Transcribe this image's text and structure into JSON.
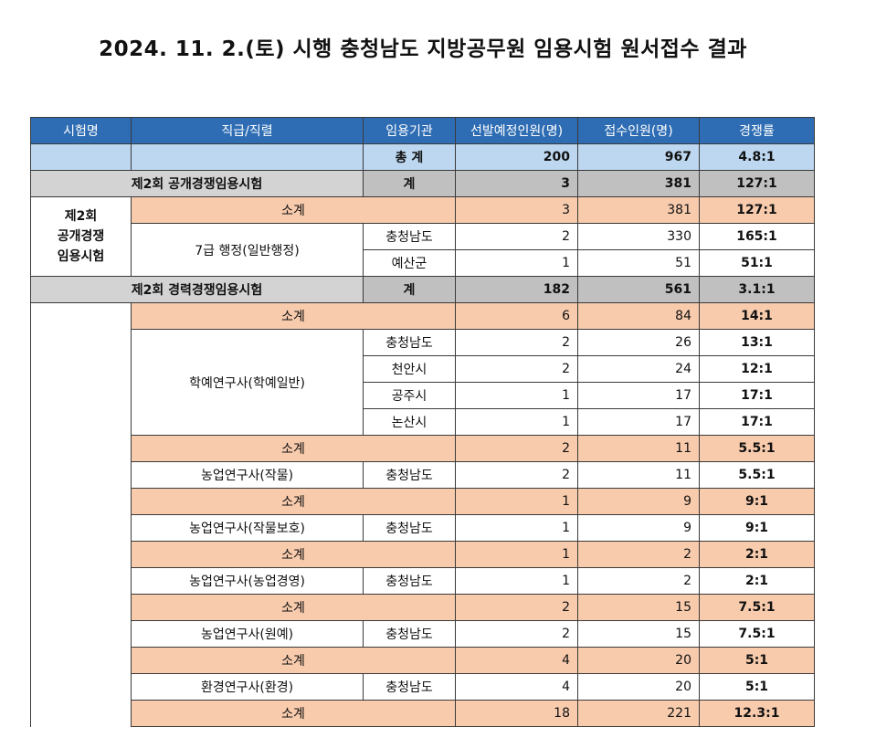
{
  "title": "2024. 11. 2.(토) 시행 충청남도 지방공무원 임용시험 원서접수 결과",
  "headers": [
    "시험명",
    "직급/직렬",
    "임용기관",
    "선발예정인원(명)",
    "접수인원(명)",
    "경쟁률"
  ],
  "total": {
    "label": "총 계",
    "planned": "200",
    "applied": "967",
    "ratio": "4.8:1"
  },
  "open_exam": {
    "name": "제2회 공개경쟁임용시험",
    "sum_label": "계",
    "planned": "3",
    "applied": "381",
    "ratio": "127:1",
    "side_label": "제2회\n공개경쟁\n임용시험",
    "subtotal": {
      "label": "소계",
      "planned": "3",
      "applied": "381",
      "ratio": "127:1"
    },
    "position": "7급 행정(일반행정)",
    "rows": [
      {
        "agency": "충청남도",
        "planned": "2",
        "applied": "330",
        "ratio": "165:1"
      },
      {
        "agency": "예산군",
        "planned": "1",
        "applied": "51",
        "ratio": "51:1"
      }
    ]
  },
  "career_exam": {
    "name": "제2회 경력경쟁임용시험",
    "sum_label": "계",
    "planned": "182",
    "applied": "561",
    "ratio": "3.1:1",
    "research_subtotal": {
      "label": "소계",
      "planned": "6",
      "applied": "84",
      "ratio": "14:1"
    },
    "research_position": "학예연구사(학예일반)",
    "research_rows": [
      {
        "agency": "충청남도",
        "planned": "2",
        "applied": "26",
        "ratio": "13:1"
      },
      {
        "agency": "천안시",
        "planned": "2",
        "applied": "24",
        "ratio": "12:1"
      },
      {
        "agency": "공주시",
        "planned": "1",
        "applied": "17",
        "ratio": "17:1"
      },
      {
        "agency": "논산시",
        "planned": "1",
        "applied": "17",
        "ratio": "17:1"
      }
    ],
    "groups": [
      {
        "subtotal": {
          "label": "소계",
          "planned": "2",
          "applied": "11",
          "ratio": "5.5:1"
        },
        "row": {
          "position": "농업연구사(작물)",
          "agency": "충청남도",
          "planned": "2",
          "applied": "11",
          "ratio": "5.5:1"
        }
      },
      {
        "subtotal": {
          "label": "소계",
          "planned": "1",
          "applied": "9",
          "ratio": "9:1"
        },
        "row": {
          "position": "농업연구사(작물보호)",
          "agency": "충청남도",
          "planned": "1",
          "applied": "9",
          "ratio": "9:1"
        }
      },
      {
        "subtotal": {
          "label": "소계",
          "planned": "1",
          "applied": "2",
          "ratio": "2:1"
        },
        "row": {
          "position": "농업연구사(농업경영)",
          "agency": "충청남도",
          "planned": "1",
          "applied": "2",
          "ratio": "2:1"
        }
      },
      {
        "subtotal": {
          "label": "소계",
          "planned": "2",
          "applied": "15",
          "ratio": "7.5:1"
        },
        "row": {
          "position": "농업연구사(원예)",
          "agency": "충청남도",
          "planned": "2",
          "applied": "15",
          "ratio": "7.5:1"
        }
      },
      {
        "subtotal": {
          "label": "소계",
          "planned": "4",
          "applied": "20",
          "ratio": "5:1"
        },
        "row": {
          "position": "환경연구사(환경)",
          "agency": "충청남도",
          "planned": "4",
          "applied": "20",
          "ratio": "5:1"
        }
      }
    ],
    "last_subtotal": {
      "label": "소계",
      "planned": "18",
      "applied": "221",
      "ratio": "12.3:1"
    }
  },
  "colors": {
    "header": "#2e6db4",
    "total": "#bcd7ef",
    "group": "#c0c0c0",
    "subtotal": "#f8cbad"
  }
}
